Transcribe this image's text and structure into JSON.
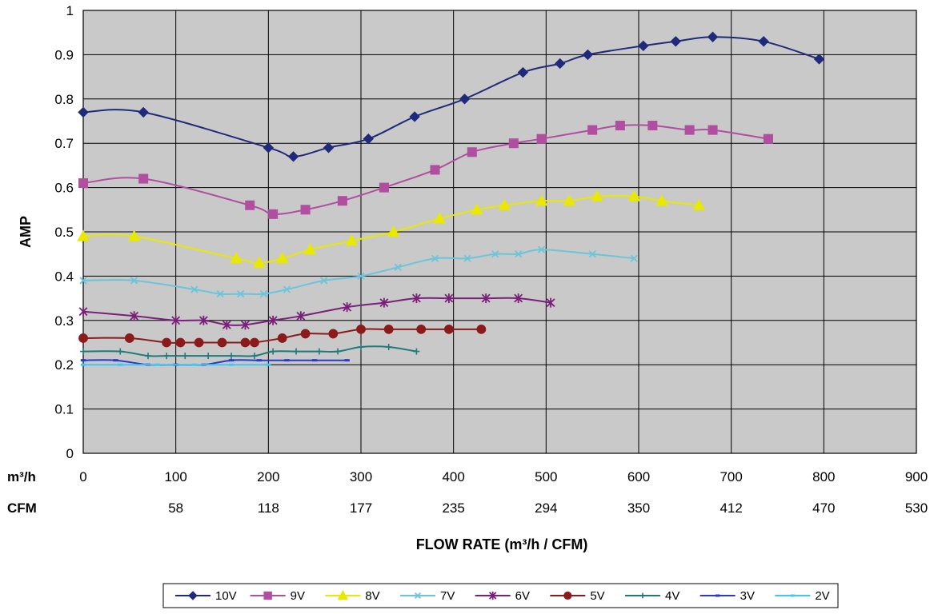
{
  "chart_data": {
    "type": "line",
    "title": "",
    "ylabel": "AMP",
    "xlabel": "FLOW RATE (m³/h / CFM)",
    "xlim": [
      0,
      900
    ],
    "ylim": [
      0,
      1
    ],
    "grid": true,
    "legend_position": "bottom",
    "x_ticks": [
      0,
      100,
      200,
      300,
      400,
      500,
      600,
      700,
      800,
      900
    ],
    "y_ticks": [
      0,
      0.1,
      0.2,
      0.3,
      0.4,
      0.5,
      0.6,
      0.7,
      0.8,
      0.9,
      1
    ],
    "secondary_axis": {
      "m3h_label": "m³/h",
      "cfm_label": "CFM",
      "m3h_ticks": [
        "0",
        "100",
        "200",
        "300",
        "400",
        "500",
        "600",
        "700",
        "800",
        "900"
      ],
      "cfm_ticks": [
        "",
        "58",
        "118",
        "177",
        "235",
        "294",
        "350",
        "412",
        "470",
        "530"
      ]
    },
    "series": [
      {
        "name": "10V",
        "color": "#1f2a7a",
        "marker": "diamond",
        "x": [
          0,
          65,
          200,
          227,
          265,
          308,
          358,
          412,
          475,
          515,
          545,
          605,
          640,
          680,
          735,
          795
        ],
        "y": [
          0.77,
          0.77,
          0.69,
          0.67,
          0.69,
          0.71,
          0.76,
          0.8,
          0.86,
          0.88,
          0.9,
          0.92,
          0.93,
          0.94,
          0.93,
          0.89
        ]
      },
      {
        "name": "9V",
        "color": "#b04fa0",
        "marker": "square",
        "x": [
          0,
          65,
          180,
          205,
          240,
          280,
          325,
          380,
          420,
          465,
          495,
          550,
          580,
          615,
          655,
          680,
          740
        ],
        "y": [
          0.61,
          0.62,
          0.56,
          0.54,
          0.55,
          0.57,
          0.6,
          0.64,
          0.68,
          0.7,
          0.71,
          0.73,
          0.74,
          0.74,
          0.73,
          0.73,
          0.71
        ]
      },
      {
        "name": "8V",
        "color": "#e8e800",
        "marker": "triangle",
        "x": [
          0,
          55,
          165,
          190,
          215,
          245,
          290,
          335,
          385,
          425,
          455,
          495,
          525,
          555,
          595,
          625,
          665
        ],
        "y": [
          0.49,
          0.49,
          0.44,
          0.43,
          0.44,
          0.46,
          0.48,
          0.5,
          0.53,
          0.55,
          0.56,
          0.57,
          0.57,
          0.58,
          0.58,
          0.57,
          0.56
        ]
      },
      {
        "name": "7V",
        "color": "#6bc5da",
        "marker": "x",
        "x": [
          0,
          55,
          120,
          148,
          170,
          195,
          220,
          260,
          300,
          340,
          380,
          415,
          445,
          470,
          495,
          550,
          595
        ],
        "y": [
          0.39,
          0.39,
          0.37,
          0.36,
          0.36,
          0.36,
          0.37,
          0.39,
          0.4,
          0.42,
          0.44,
          0.44,
          0.45,
          0.45,
          0.46,
          0.45,
          0.44
        ]
      },
      {
        "name": "6V",
        "color": "#7a1f7a",
        "marker": "star",
        "x": [
          0,
          55,
          100,
          130,
          155,
          175,
          205,
          235,
          285,
          325,
          360,
          395,
          435,
          470,
          505
        ],
        "y": [
          0.32,
          0.31,
          0.3,
          0.3,
          0.29,
          0.29,
          0.3,
          0.31,
          0.33,
          0.34,
          0.35,
          0.35,
          0.35,
          0.35,
          0.34
        ]
      },
      {
        "name": "5V",
        "color": "#8b1a1a",
        "marker": "circle",
        "x": [
          0,
          50,
          90,
          105,
          125,
          150,
          175,
          185,
          215,
          240,
          270,
          300,
          330,
          365,
          395,
          430
        ],
        "y": [
          0.26,
          0.26,
          0.25,
          0.25,
          0.25,
          0.25,
          0.25,
          0.25,
          0.26,
          0.27,
          0.27,
          0.28,
          0.28,
          0.28,
          0.28,
          0.28
        ]
      },
      {
        "name": "4V",
        "color": "#1f7a7a",
        "marker": "plus",
        "x": [
          0,
          40,
          70,
          90,
          110,
          135,
          160,
          185,
          205,
          230,
          255,
          275,
          300,
          330,
          360
        ],
        "y": [
          0.23,
          0.23,
          0.22,
          0.22,
          0.22,
          0.22,
          0.22,
          0.22,
          0.23,
          0.23,
          0.23,
          0.23,
          0.24,
          0.24,
          0.23
        ]
      },
      {
        "name": "3V",
        "color": "#2a3ac8",
        "marker": "dash",
        "x": [
          0,
          35,
          70,
          100,
          130,
          160,
          190,
          220,
          250,
          285
        ],
        "y": [
          0.21,
          0.21,
          0.2,
          0.2,
          0.2,
          0.21,
          0.21,
          0.21,
          0.21,
          0.21
        ]
      },
      {
        "name": "2V",
        "color": "#40c8f0",
        "marker": "dash",
        "x": [
          0,
          40,
          80,
          120,
          160,
          200
        ],
        "y": [
          0.2,
          0.2,
          0.2,
          0.2,
          0.2,
          0.2
        ]
      }
    ]
  }
}
